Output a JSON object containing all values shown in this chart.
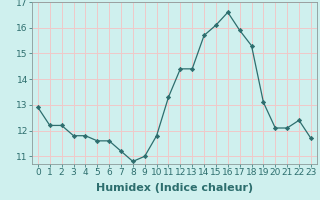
{
  "x": [
    0,
    1,
    2,
    3,
    4,
    5,
    6,
    7,
    8,
    9,
    10,
    11,
    12,
    13,
    14,
    15,
    16,
    17,
    18,
    19,
    20,
    21,
    22,
    23
  ],
  "y": [
    12.9,
    12.2,
    12.2,
    11.8,
    11.8,
    11.6,
    11.6,
    11.2,
    10.8,
    11.0,
    11.8,
    13.3,
    14.4,
    14.4,
    15.7,
    16.1,
    16.6,
    15.9,
    15.3,
    13.1,
    12.1,
    12.1,
    12.4,
    11.7
  ],
  "xlabel": "Humidex (Indice chaleur)",
  "ylim": [
    10.7,
    17.0
  ],
  "xlim": [
    -0.5,
    23.5
  ],
  "yticks": [
    11,
    12,
    13,
    14,
    15,
    16,
    17
  ],
  "xticks": [
    0,
    1,
    2,
    3,
    4,
    5,
    6,
    7,
    8,
    9,
    10,
    11,
    12,
    13,
    14,
    15,
    16,
    17,
    18,
    19,
    20,
    21,
    22,
    23
  ],
  "line_color": "#2d6e6e",
  "marker": "D",
  "marker_size": 2.2,
  "bg_color": "#cff0ee",
  "grid_color": "#f0c8c8",
  "xlabel_fontsize": 8,
  "tick_fontsize": 6.5,
  "xlabel_color": "#2d6e6e",
  "tick_color": "#2d6e6e",
  "spine_color": "#8a9a9a"
}
